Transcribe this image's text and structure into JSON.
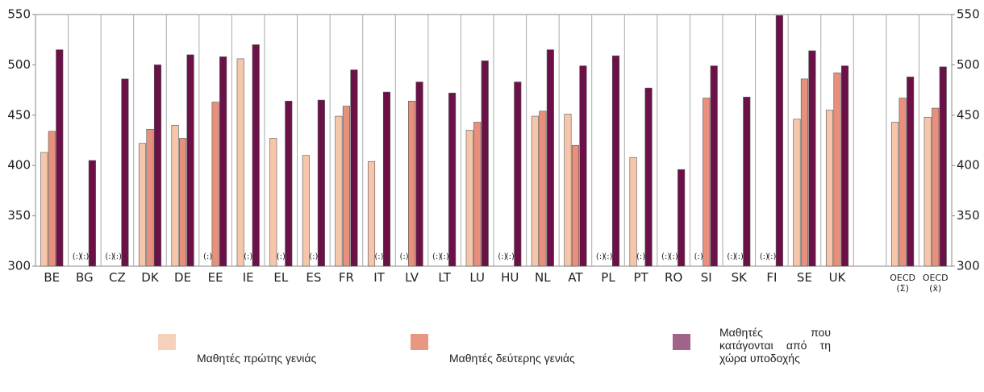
{
  "chart_data": {
    "type": "bar",
    "categories": [
      "BE",
      "BG",
      "CZ",
      "DK",
      "DE",
      "EE",
      "IE",
      "EL",
      "ES",
      "FR",
      "IT",
      "LV",
      "LT",
      "LU",
      "HU",
      "NL",
      "AT",
      "PL",
      "PT",
      "RO",
      "SI",
      "SK",
      "FI",
      "SE",
      "UK",
      null,
      "OECD\n(Σ)",
      "OECD\n(x̄)"
    ],
    "series": [
      {
        "name": "Μαθητές πρώτης γενιάς",
        "color": "#f6c6ab",
        "values": [
          413,
          null,
          null,
          422,
          440,
          null,
          506,
          427,
          410,
          449,
          404,
          null,
          null,
          435,
          null,
          449,
          451,
          null,
          408,
          null,
          null,
          null,
          null,
          446,
          455,
          null,
          443,
          448
        ],
        "value_labels": [
          null,
          "(:)",
          "(:)",
          null,
          null,
          "(:)",
          null,
          null,
          null,
          null,
          null,
          "(:)",
          "(:)",
          null,
          "(:)",
          null,
          null,
          "(:)",
          null,
          "(:)",
          "(:)",
          "(:)",
          "(:)",
          null,
          null,
          null,
          null,
          null
        ]
      },
      {
        "name": "Μαθητές δεύτερης γενιάς",
        "color": "#e8907c",
        "values": [
          434,
          null,
          null,
          436,
          427,
          463,
          null,
          null,
          null,
          459,
          null,
          464,
          null,
          443,
          null,
          454,
          420,
          null,
          null,
          null,
          467,
          null,
          null,
          486,
          492,
          null,
          467,
          457
        ],
        "value_labels": [
          null,
          "(:)",
          "(:)",
          null,
          null,
          null,
          "(:)",
          "(:)",
          "(:)",
          null,
          "(:)",
          null,
          "(:)",
          null,
          "(:)",
          null,
          null,
          "(:)",
          "(:)",
          "(:)",
          null,
          "(:)",
          "(:)",
          null,
          null,
          null,
          null,
          null
        ]
      },
      {
        "name": "Μαθητές που κατάγονται από τη χώρα υποδοχής",
        "color": "#6b1148",
        "values": [
          515,
          405,
          486,
          500,
          510,
          508,
          520,
          464,
          465,
          495,
          473,
          483,
          472,
          504,
          483,
          515,
          499,
          509,
          477,
          396,
          499,
          468,
          549,
          514,
          499,
          null,
          488,
          498
        ]
      }
    ],
    "ylim": [
      300,
      550
    ],
    "yticks": [
      300,
      350,
      400,
      450,
      500,
      550
    ],
    "y2lim": [
      300,
      550
    ],
    "y2ticks": [
      300,
      350,
      400,
      450,
      500,
      550
    ]
  }
}
